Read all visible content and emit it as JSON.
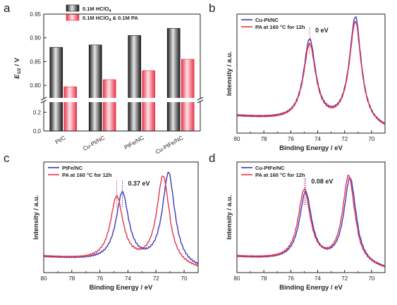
{
  "colors": {
    "blue": "#3a3ab8",
    "red": "#e8334a",
    "axis": "#222222",
    "dotted": "#777777"
  },
  "chart_data": [
    {
      "panel": "a",
      "type": "bar",
      "ylabel_main": "E",
      "ylabel_sub": "1/2",
      "ylabel_unit": " / V",
      "categories": [
        "Pt/C",
        "Cu-Pt/NC",
        "PtFe/NC",
        "Cu-PtFe/NC"
      ],
      "series": [
        {
          "name": "0.1M HClO4",
          "legend_main": "0.1M HClO",
          "legend_sub": "4",
          "legend_rest": "",
          "values": [
            0.88,
            0.885,
            0.905,
            0.92
          ]
        },
        {
          "name": "0.1M HClO4 & 0.1M PA",
          "legend_main": "0.1M HClO",
          "legend_sub": "4",
          "legend_rest": " & 0.1M PA",
          "values": [
            0.797,
            0.812,
            0.831,
            0.855
          ]
        }
      ],
      "ylim_upper": [
        0.775,
        0.95
      ],
      "ylim_lower": [
        0.0,
        0.3
      ],
      "yticks_upper": [
        "0.80",
        "0.85",
        "0.90",
        "0.95"
      ],
      "yticks_lower": [
        "0.0",
        "0.2"
      ],
      "axis_break": true
    },
    {
      "panel": "b",
      "type": "line",
      "xlabel": "Binding Energy / eV",
      "ylabel": "Intensity / a.u.",
      "xlim": [
        80,
        69
      ],
      "xticks": [
        "80",
        "78",
        "76",
        "74",
        "72",
        "70"
      ],
      "legend": [
        "Cu-Pt/NC",
        "PA at 160 °C for 12h"
      ],
      "annotation": "0 eV",
      "peaks_blue": [
        {
          "x": 74.6,
          "h": 0.68
        },
        {
          "x": 71.2,
          "h": 0.9
        }
      ],
      "peaks_red": [
        {
          "x": 74.6,
          "h": 0.64
        },
        {
          "x": 71.2,
          "h": 0.86
        }
      ],
      "mark_x": 74.6
    },
    {
      "panel": "c",
      "type": "line",
      "xlabel": "Binding Energy / eV",
      "ylabel": "Intensity / a.u.",
      "xlim": [
        80,
        69
      ],
      "xticks": [
        "80",
        "78",
        "76",
        "74",
        "72",
        "70"
      ],
      "legend": [
        "PtFe/NC",
        "PA at 160 °C for 12h"
      ],
      "annotation": "0.37 eV",
      "peaks_blue": [
        {
          "x": 74.4,
          "h": 0.62
        },
        {
          "x": 71.1,
          "h": 0.83
        }
      ],
      "peaks_red": [
        {
          "x": 74.8,
          "h": 0.58
        },
        {
          "x": 71.5,
          "h": 0.8
        }
      ],
      "mark_x": [
        74.8,
        74.4
      ]
    },
    {
      "panel": "d",
      "type": "line",
      "xlabel": "Binding Energy / eV",
      "ylabel": "Intensity / a.u.",
      "xlim": [
        80,
        69
      ],
      "xticks": [
        "80",
        "78",
        "76",
        "74",
        "72",
        "70"
      ],
      "legend": [
        "Cu-PtFe/NC",
        "PA at 160 °C for 12h"
      ],
      "annotation": "0.08 eV",
      "peaks_blue": [
        {
          "x": 74.9,
          "h": 0.62
        },
        {
          "x": 71.6,
          "h": 0.78
        }
      ],
      "peaks_red": [
        {
          "x": 75.0,
          "h": 0.64
        },
        {
          "x": 71.7,
          "h": 0.8
        }
      ],
      "mark_x": [
        75.0,
        74.9
      ]
    }
  ]
}
